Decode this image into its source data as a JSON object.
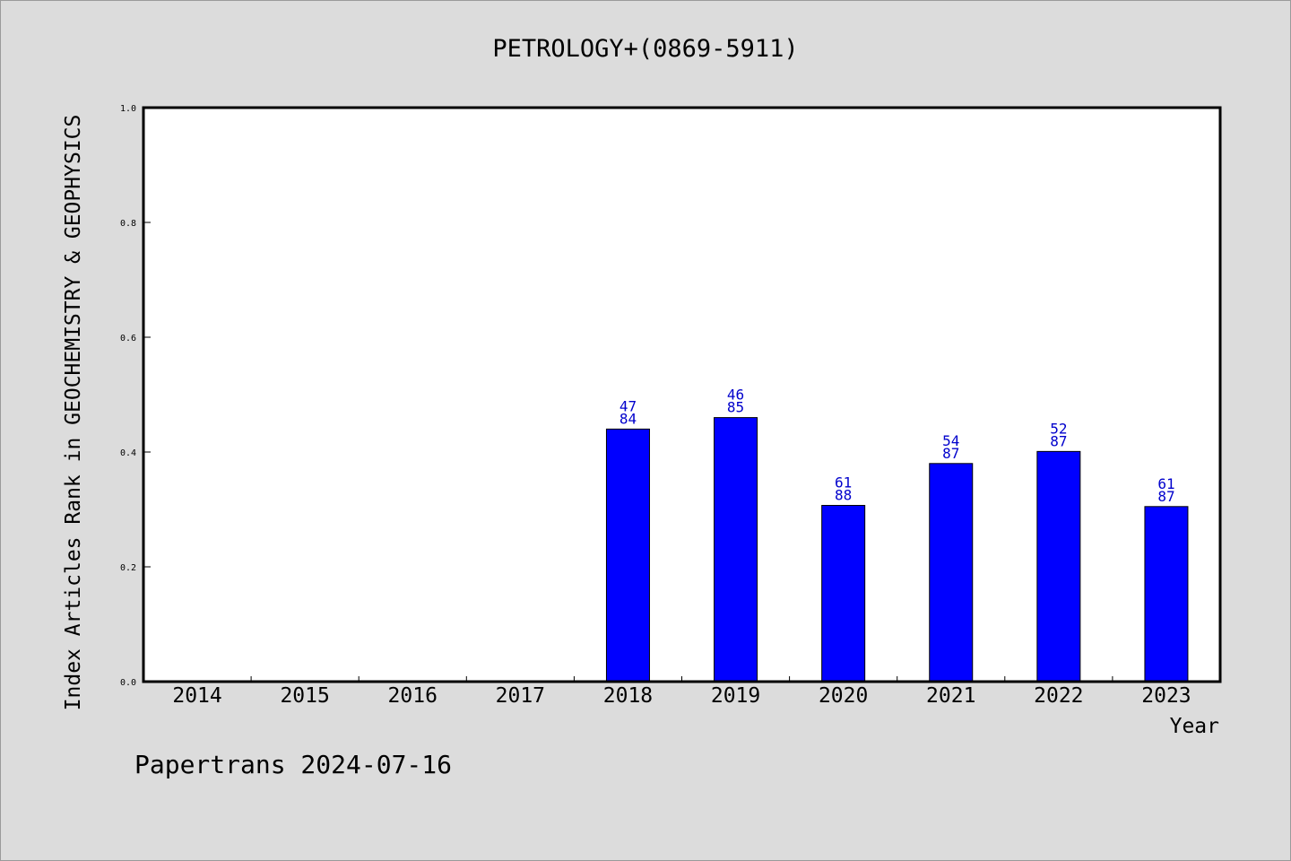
{
  "chart_data": {
    "type": "bar",
    "title": "PETROLOGY+(0869-5911)",
    "ylabel": "Index Articles Rank in GEOCHEMISTRY & GEOPHYSICS",
    "xlabel": "Year",
    "ylim": [
      0.0,
      1.0
    ],
    "yticks": [
      "0.0",
      "0.2",
      "0.4",
      "0.6",
      "0.8",
      "1.0"
    ],
    "categories": [
      "2014",
      "2015",
      "2016",
      "2017",
      "2018",
      "2019",
      "2020",
      "2021",
      "2022",
      "2023"
    ],
    "values": [
      null,
      null,
      null,
      null,
      0.44,
      0.46,
      0.307,
      0.38,
      0.401,
      0.305
    ],
    "labels_top": [
      "",
      "",
      "",
      "",
      "47",
      "46",
      "61",
      "54",
      "52",
      "61"
    ],
    "labels_bottom": [
      "",
      "",
      "",
      "",
      "84",
      "85",
      "88",
      "87",
      "87",
      "87"
    ],
    "bar_color": "#0000ff",
    "label_color": "#0000cc",
    "grid": false
  },
  "footer": "Papertrans 2024-07-16"
}
